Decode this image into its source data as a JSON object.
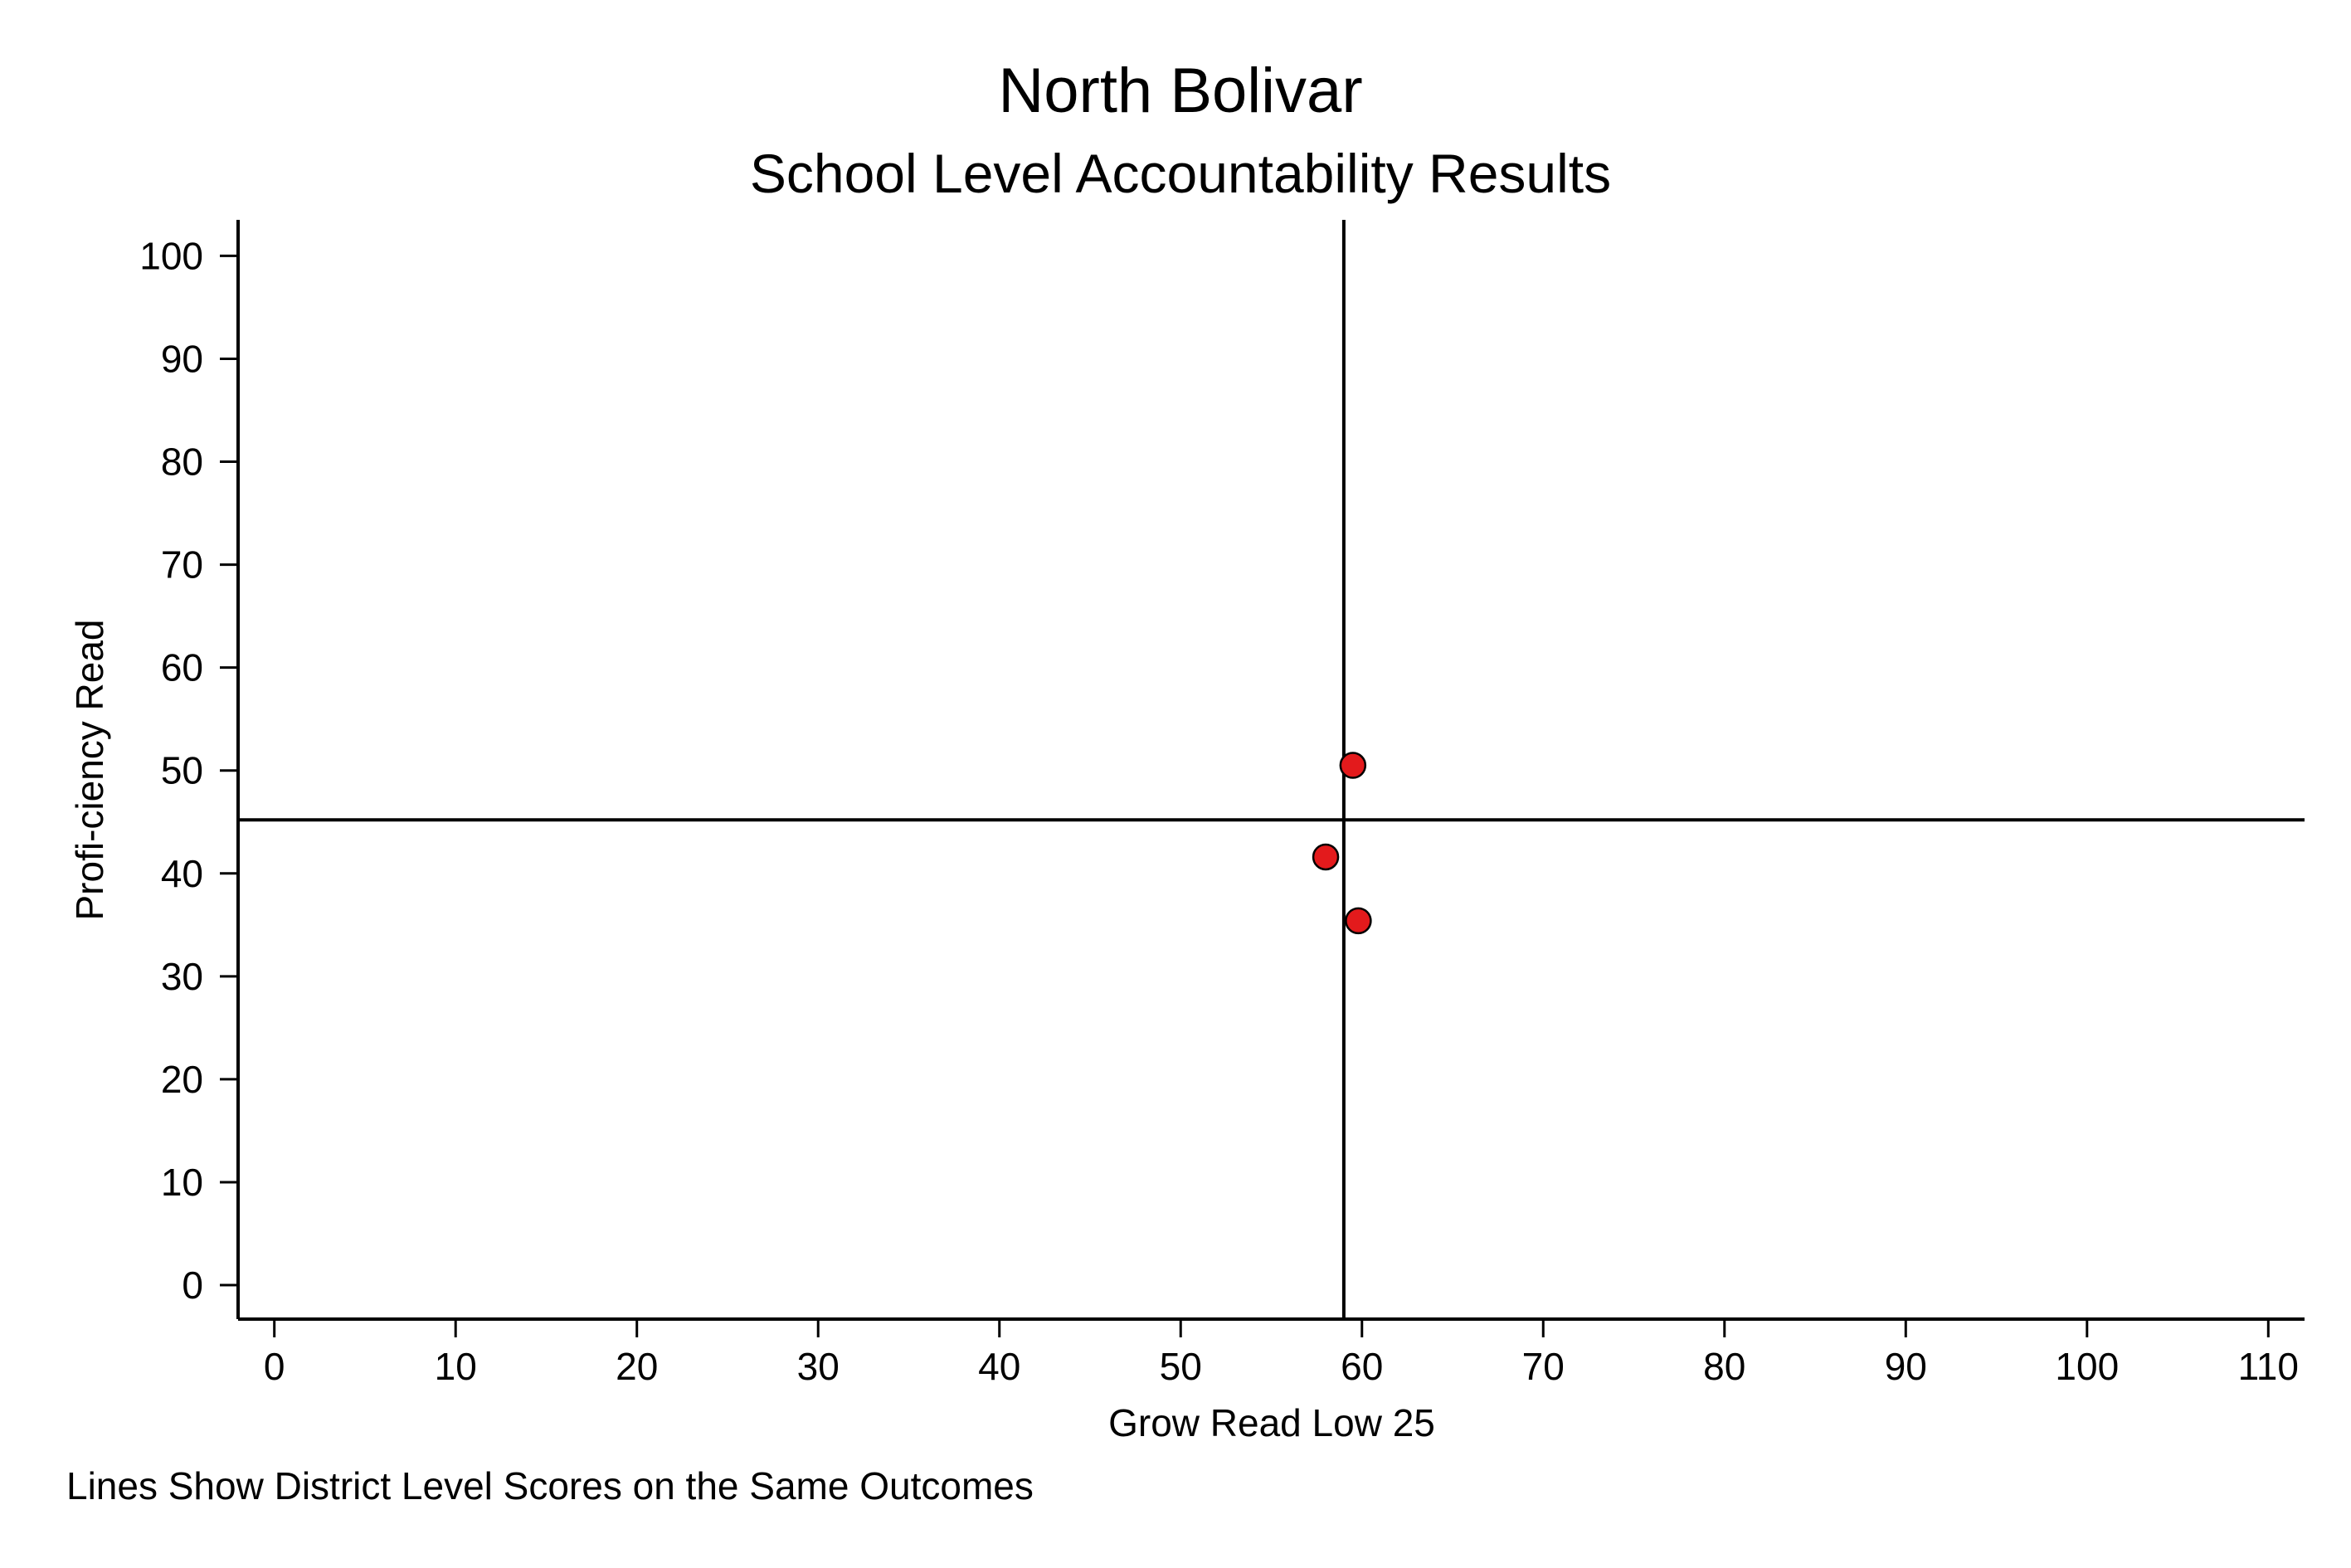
{
  "chart_data": {
    "type": "scatter",
    "title": "North Bolivar",
    "subtitle": "School Level Accountability Results",
    "xlabel": "Grow Read Low 25",
    "ylabel": "Profi-ciency Read",
    "note": "Lines Show District Level Scores on the Same Outcomes",
    "xlim": [
      -2,
      112
    ],
    "ylim": [
      -3.3,
      103.5
    ],
    "x_ticks": [
      0,
      10,
      20,
      30,
      40,
      50,
      60,
      70,
      80,
      90,
      100,
      110
    ],
    "y_ticks": [
      0,
      10,
      20,
      30,
      40,
      50,
      60,
      70,
      80,
      90,
      100
    ],
    "x_tick_labels": [
      "0",
      "10",
      "20",
      "30",
      "40",
      "50",
      "60",
      "70",
      "80",
      "90",
      "100",
      "110"
    ],
    "y_tick_labels": [
      "0",
      "10",
      "20",
      "30",
      "40",
      "50",
      "60",
      "70",
      "80",
      "90",
      "100"
    ],
    "grid": false,
    "points": [
      {
        "x": 59.5,
        "y": 50.5
      },
      {
        "x": 58.0,
        "y": 41.6
      },
      {
        "x": 59.8,
        "y": 35.4
      }
    ],
    "reference_lines": {
      "vertical_x": 59.0,
      "horizontal_y": 45.2
    },
    "marker_color": "#e31a1c",
    "marker_edge_color": "#000000"
  }
}
